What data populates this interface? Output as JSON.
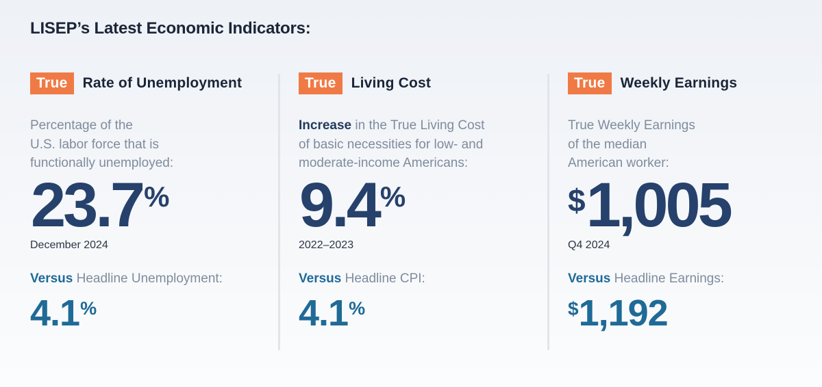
{
  "page": {
    "title": "LISEP’s Latest Economic Indicators:"
  },
  "colors": {
    "badge": "#f07a46",
    "title_text": "#1a2538",
    "description_text": "#7f8c9d",
    "big_value": "#26416b",
    "versus_value": "#1f6a97",
    "divider": "#e1e5ea"
  },
  "indicators": [
    {
      "badge": "True",
      "title": "Rate of Unemployment",
      "description": {
        "emphasis": "",
        "lines": [
          "Percentage of the",
          "U.S. labor force that is",
          "functionally unemployed:"
        ]
      },
      "value": {
        "prefix": "",
        "number": "23.7",
        "suffix": "%"
      },
      "period": "December 2024",
      "versus": {
        "label": "Versus",
        "text": "Headline Unemployment:",
        "prefix": "",
        "number": "4.1",
        "suffix": "%"
      }
    },
    {
      "badge": "True",
      "title": "Living Cost",
      "description": {
        "emphasis": "Increase",
        "lines": [
          " in the True Living Cost",
          "of basic necessities for low- and",
          "moderate-income Americans:"
        ]
      },
      "value": {
        "prefix": "",
        "number": "9.4",
        "suffix": "%"
      },
      "period": "2022–2023",
      "versus": {
        "label": "Versus",
        "text": "Headline CPI:",
        "prefix": "",
        "number": "4.1",
        "suffix": "%"
      }
    },
    {
      "badge": "True",
      "title": "Weekly Earnings",
      "description": {
        "emphasis": "",
        "lines": [
          "True Weekly Earnings",
          "of the median",
          "American worker:"
        ]
      },
      "value": {
        "prefix": "$",
        "number": "1,005",
        "suffix": ""
      },
      "period": "Q4 2024",
      "versus": {
        "label": "Versus",
        "text": "Headline Earnings:",
        "prefix": "$",
        "number": "1,192",
        "suffix": ""
      }
    }
  ]
}
